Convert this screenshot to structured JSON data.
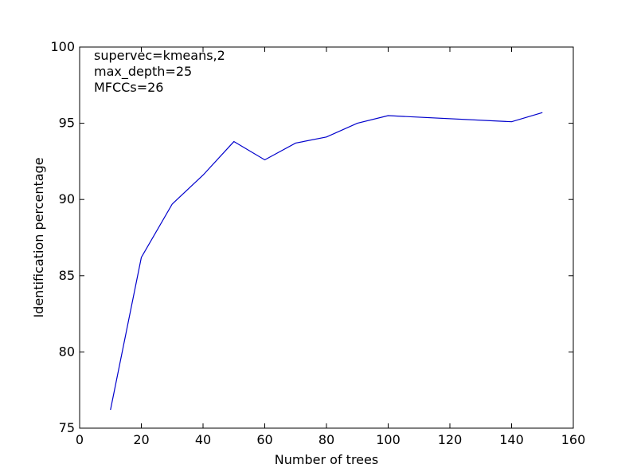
{
  "chart_data": {
    "type": "line",
    "title": "",
    "xlabel": "Number of trees",
    "ylabel": "Identification percentage",
    "xlim": [
      0,
      160
    ],
    "ylim": [
      75,
      100
    ],
    "xticks": [
      0,
      20,
      40,
      60,
      80,
      100,
      120,
      140,
      160
    ],
    "yticks": [
      75,
      80,
      85,
      90,
      95,
      100
    ],
    "xtick_labels": [
      "0",
      "20",
      "40",
      "60",
      "80",
      "100",
      "120",
      "140",
      "160"
    ],
    "ytick_labels": [
      "75",
      "80",
      "85",
      "90",
      "95",
      "100"
    ],
    "annotations": [
      "supervec=kmeans,2",
      "max_depth=25",
      "MFCCs=26"
    ],
    "grid": false,
    "series": [
      {
        "color": "#0000cc",
        "x": [
          10,
          20,
          30,
          40,
          50,
          60,
          70,
          80,
          90,
          100,
          140,
          150
        ],
        "y": [
          76.2,
          86.2,
          89.7,
          91.6,
          93.8,
          92.6,
          93.7,
          94.1,
          95.0,
          95.5,
          95.1,
          95.7
        ]
      }
    ]
  }
}
